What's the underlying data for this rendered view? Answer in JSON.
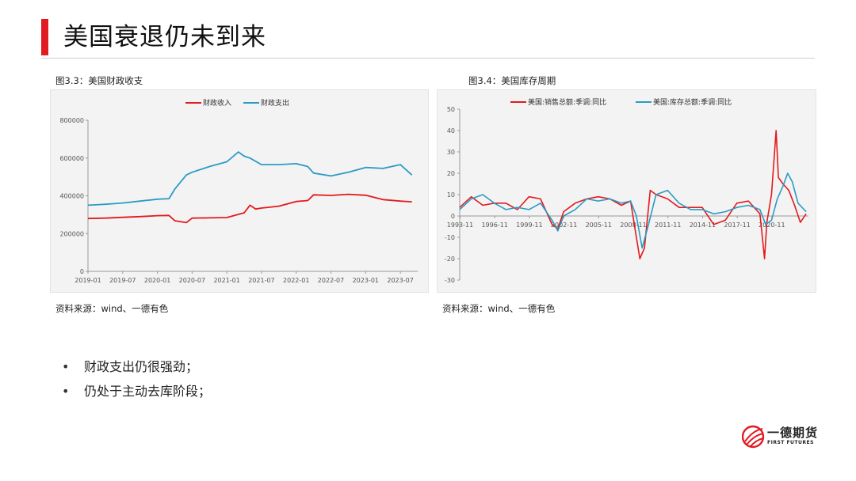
{
  "page": {
    "title": "美国衰退仍未到来"
  },
  "figures": [
    {
      "title": "图3.3：美国财政收支",
      "source": "资料来源：wind、一德有色"
    },
    {
      "title": "图3.4：美国库存周期",
      "source": "资料来源：wind、一德有色"
    }
  ],
  "bullets": [
    "财政支出仍很强劲；",
    "仍处于主动去库阶段；"
  ],
  "logo": {
    "name": "一德期货",
    "sub": "FIRST FUTURES"
  },
  "colors": {
    "accent": "#e21b23",
    "red_series": "#e31a1c",
    "blue_series": "#2b9bc4"
  },
  "chart_data": [
    {
      "type": "line",
      "title": "",
      "legend_position": "top",
      "x_ticks": [
        "2019-01",
        "2019-07",
        "2020-01",
        "2020-07",
        "2021-01",
        "2021-07",
        "2022-01",
        "2022-07",
        "2023-01",
        "2023-07"
      ],
      "ylim": [
        0,
        800000
      ],
      "y_ticks": [
        "0",
        "200000",
        "400000",
        "600000",
        "800000"
      ],
      "grid": false,
      "series": [
        {
          "name": "财政收入",
          "color": "#e31a1c",
          "x": [
            "2019-01",
            "2019-04",
            "2019-07",
            "2019-10",
            "2020-01",
            "2020-03",
            "2020-04",
            "2020-06",
            "2020-07",
            "2020-10",
            "2021-01",
            "2021-04",
            "2021-05",
            "2021-06",
            "2021-07",
            "2021-10",
            "2022-01",
            "2022-03",
            "2022-04",
            "2022-07",
            "2022-10",
            "2023-01",
            "2023-04",
            "2023-07",
            "2023-09"
          ],
          "values": [
            280000,
            282000,
            286000,
            290000,
            295000,
            296000,
            268000,
            258000,
            282000,
            283000,
            285000,
            310000,
            350000,
            330000,
            335000,
            345000,
            370000,
            375000,
            405000,
            402000,
            408000,
            403000,
            380000,
            372000,
            368000
          ]
        },
        {
          "name": "财政支出",
          "color": "#2b9bc4",
          "x": [
            "2019-01",
            "2019-04",
            "2019-07",
            "2019-10",
            "2020-01",
            "2020-03",
            "2020-04",
            "2020-06",
            "2020-07",
            "2020-10",
            "2021-01",
            "2021-03",
            "2021-04",
            "2021-05",
            "2021-07",
            "2021-10",
            "2022-01",
            "2022-03",
            "2022-04",
            "2022-07",
            "2022-10",
            "2023-01",
            "2023-04",
            "2023-07",
            "2023-09"
          ],
          "values": [
            350000,
            355000,
            362000,
            372000,
            382000,
            385000,
            435000,
            510000,
            525000,
            555000,
            580000,
            632000,
            610000,
            600000,
            565000,
            565000,
            570000,
            555000,
            520000,
            505000,
            525000,
            550000,
            545000,
            565000,
            510000
          ]
        }
      ]
    },
    {
      "type": "line",
      "title": "",
      "legend_position": "top",
      "x_ticks": [
        "1993-11",
        "1996-11",
        "1999-11",
        "2002-11",
        "2005-11",
        "2008-11",
        "2011-11",
        "2014-11",
        "2017-11",
        "2020-11"
      ],
      "ylim": [
        -30,
        50
      ],
      "y_ticks": [
        "-30",
        "-20",
        "-10",
        "0",
        "10",
        "20",
        "30",
        "40",
        "50"
      ],
      "grid": false,
      "series": [
        {
          "name": "美国:销售总额:季调:同比",
          "color": "#e31a1c",
          "x": [
            1993.8,
            1994.8,
            1995.8,
            1996.8,
            1997.8,
            1998.8,
            1999.8,
            2000.8,
            2001.8,
            2002.3,
            2002.8,
            2003.8,
            2004.8,
            2005.8,
            2006.8,
            2007.8,
            2008.6,
            2009.1,
            2009.4,
            2009.8,
            2010.3,
            2010.8,
            2011.8,
            2012.8,
            2013.8,
            2014.8,
            2015.8,
            2016.8,
            2017.8,
            2018.8,
            2019.8,
            2020.2,
            2020.4,
            2020.8,
            2021.2,
            2021.4,
            2021.8,
            2022.3,
            2022.8,
            2023.3,
            2023.8
          ],
          "values": [
            4,
            9,
            5,
            6,
            6,
            3,
            9,
            8,
            -4,
            -6,
            2,
            6,
            8,
            9,
            8,
            5,
            7,
            -10,
            -20,
            -15,
            12,
            10,
            8,
            4,
            4,
            4,
            -4,
            -2,
            6,
            7,
            1,
            -20,
            -3,
            10,
            40,
            18,
            15,
            12,
            5,
            -3,
            1
          ]
        },
        {
          "name": "美国:库存总额:季调:同比",
          "color": "#2b9bc4",
          "x": [
            1993.8,
            1994.8,
            1995.8,
            1996.8,
            1997.8,
            1998.8,
            1999.8,
            2000.8,
            2001.8,
            2002.3,
            2002.8,
            2003.8,
            2004.8,
            2005.8,
            2006.8,
            2007.8,
            2008.6,
            2009.1,
            2009.6,
            2010.1,
            2010.8,
            2011.8,
            2012.8,
            2013.8,
            2014.8,
            2015.8,
            2016.8,
            2017.8,
            2018.8,
            2019.8,
            2020.3,
            2020.8,
            2021.3,
            2021.8,
            2022.2,
            2022.6,
            2023.1,
            2023.8
          ],
          "values": [
            3,
            8,
            10,
            6,
            3,
            4,
            3,
            6,
            -2,
            -7,
            0,
            3,
            8,
            7,
            8,
            6,
            7,
            0,
            -15,
            -5,
            10,
            12,
            6,
            3,
            3,
            1,
            2,
            4,
            5,
            3,
            -4,
            -2,
            8,
            14,
            20,
            16,
            6,
            2
          ]
        }
      ]
    }
  ]
}
